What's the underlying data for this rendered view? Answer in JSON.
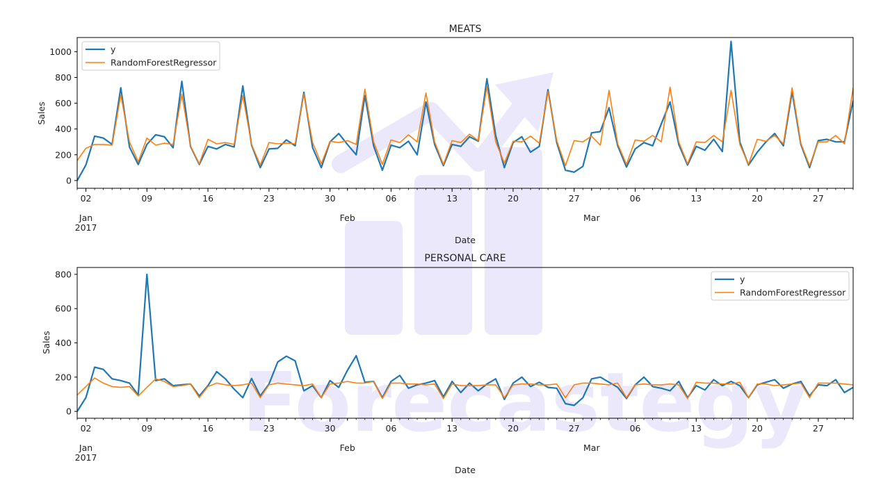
{
  "watermark": {
    "text": "Forecastegy",
    "color": "#e8e4fb"
  },
  "chart_data": [
    {
      "type": "line",
      "title": "MEATS",
      "xlabel": "Date",
      "ylabel": "Sales",
      "ylim": [
        -60,
        1110
      ],
      "yticks": [
        0,
        200,
        400,
        600,
        800,
        1000
      ],
      "x_start": "2017-01-01",
      "x_end": "2017-03-31",
      "x_ticks": [
        {
          "day": 1,
          "label": "02",
          "sublabel": "Jan\n2017"
        },
        {
          "day": 8,
          "label": "09",
          "sublabel": ""
        },
        {
          "day": 15,
          "label": "16",
          "sublabel": ""
        },
        {
          "day": 22,
          "label": "23",
          "sublabel": ""
        },
        {
          "day": 29,
          "label": "30",
          "sublabel": ""
        },
        {
          "day": 36,
          "label": "06",
          "sublabel": ""
        },
        {
          "day": 43,
          "label": "13",
          "sublabel": ""
        },
        {
          "day": 50,
          "label": "20",
          "sublabel": ""
        },
        {
          "day": 57,
          "label": "27",
          "sublabel": ""
        },
        {
          "day": 64,
          "label": "06",
          "sublabel": ""
        },
        {
          "day": 71,
          "label": "13",
          "sublabel": ""
        },
        {
          "day": 78,
          "label": "20",
          "sublabel": ""
        },
        {
          "day": 85,
          "label": "27",
          "sublabel": ""
        }
      ],
      "x_month_labels": [
        {
          "day": 31,
          "label": "Feb"
        },
        {
          "day": 59,
          "label": "Mar"
        }
      ],
      "legend": {
        "placement": "upper-left"
      },
      "series": [
        {
          "name": "y",
          "color": "#1f77b4",
          "values": [
            0,
            120,
            345,
            330,
            280,
            720,
            260,
            125,
            280,
            355,
            340,
            255,
            770,
            265,
            125,
            265,
            245,
            280,
            260,
            735,
            275,
            100,
            245,
            250,
            315,
            270,
            685,
            255,
            100,
            300,
            365,
            280,
            200,
            660,
            270,
            80,
            275,
            255,
            305,
            200,
            610,
            280,
            115,
            280,
            265,
            340,
            305,
            790,
            350,
            100,
            295,
            340,
            220,
            265,
            705,
            295,
            80,
            65,
            110,
            370,
            380,
            565,
            270,
            105,
            245,
            295,
            270,
            440,
            610,
            280,
            120,
            265,
            235,
            320,
            225,
            1080,
            300,
            120,
            220,
            300,
            365,
            270,
            690,
            280,
            100,
            310,
            320,
            300,
            300,
            620
          ]
        },
        {
          "name": "RandomForestRegressor",
          "color": "#ff7f0e",
          "values": [
            155,
            250,
            280,
            280,
            275,
            665,
            300,
            145,
            330,
            275,
            290,
            280,
            670,
            270,
            130,
            320,
            285,
            295,
            280,
            660,
            280,
            120,
            295,
            285,
            290,
            285,
            670,
            295,
            130,
            305,
            295,
            310,
            280,
            710,
            300,
            125,
            315,
            295,
            355,
            300,
            680,
            300,
            125,
            310,
            295,
            360,
            310,
            730,
            300,
            135,
            305,
            300,
            345,
            290,
            690,
            310,
            115,
            310,
            300,
            345,
            275,
            700,
            285,
            125,
            315,
            305,
            350,
            300,
            725,
            300,
            130,
            300,
            295,
            350,
            300,
            700,
            280,
            125,
            320,
            305,
            350,
            285,
            720,
            290,
            115,
            300,
            300,
            350,
            285,
            720
          ]
        }
      ]
    },
    {
      "type": "line",
      "title": "PERSONAL CARE",
      "xlabel": "Date",
      "ylabel": "Sales",
      "ylim": [
        -40,
        840
      ],
      "yticks": [
        0,
        200,
        400,
        600,
        800
      ],
      "x_start": "2017-01-01",
      "x_end": "2017-03-31",
      "x_ticks": [
        {
          "day": 1,
          "label": "02",
          "sublabel": "Jan\n2017"
        },
        {
          "day": 8,
          "label": "09",
          "sublabel": ""
        },
        {
          "day": 15,
          "label": "16",
          "sublabel": ""
        },
        {
          "day": 22,
          "label": "23",
          "sublabel": ""
        },
        {
          "day": 29,
          "label": "30",
          "sublabel": ""
        },
        {
          "day": 36,
          "label": "06",
          "sublabel": ""
        },
        {
          "day": 43,
          "label": "13",
          "sublabel": ""
        },
        {
          "day": 50,
          "label": "20",
          "sublabel": ""
        },
        {
          "day": 57,
          "label": "27",
          "sublabel": ""
        },
        {
          "day": 64,
          "label": "06",
          "sublabel": ""
        },
        {
          "day": 71,
          "label": "13",
          "sublabel": ""
        },
        {
          "day": 78,
          "label": "20",
          "sublabel": ""
        },
        {
          "day": 85,
          "label": "27",
          "sublabel": ""
        }
      ],
      "x_month_labels": [
        {
          "day": 31,
          "label": "Feb"
        },
        {
          "day": 59,
          "label": "Mar"
        }
      ],
      "legend": {
        "placement": "upper-right"
      },
      "series": [
        {
          "name": "y",
          "color": "#1f77b4",
          "values": [
            0,
            80,
            258,
            245,
            190,
            180,
            165,
            95,
            800,
            180,
            190,
            150,
            155,
            160,
            90,
            150,
            232,
            190,
            130,
            80,
            192,
            90,
            160,
            288,
            322,
            295,
            120,
            150,
            80,
            180,
            140,
            240,
            325,
            170,
            175,
            80,
            175,
            210,
            135,
            155,
            165,
            180,
            85,
            175,
            110,
            165,
            120,
            160,
            190,
            70,
            165,
            200,
            145,
            170,
            140,
            135,
            45,
            35,
            80,
            190,
            200,
            170,
            140,
            75,
            155,
            200,
            145,
            135,
            120,
            175,
            80,
            150,
            125,
            185,
            150,
            175,
            150,
            80,
            155,
            170,
            185,
            135,
            160,
            175,
            90,
            155,
            150,
            185,
            110,
            140
          ]
        },
        {
          "name": "RandomForestRegressor",
          "color": "#ff7f0e",
          "values": [
            95,
            145,
            195,
            165,
            145,
            140,
            145,
            90,
            140,
            190,
            175,
            145,
            150,
            160,
            80,
            145,
            165,
            155,
            150,
            155,
            165,
            80,
            155,
            165,
            160,
            155,
            150,
            160,
            80,
            160,
            165,
            175,
            165,
            165,
            175,
            75,
            165,
            165,
            160,
            160,
            155,
            160,
            75,
            160,
            150,
            150,
            150,
            155,
            155,
            80,
            155,
            160,
            160,
            155,
            155,
            160,
            80,
            155,
            165,
            165,
            160,
            155,
            165,
            80,
            155,
            160,
            155,
            155,
            160,
            155,
            75,
            170,
            165,
            165,
            160,
            160,
            170,
            80,
            160,
            160,
            150,
            155,
            160,
            165,
            80,
            165,
            165,
            165,
            160,
            155
          ]
        }
      ]
    }
  ]
}
